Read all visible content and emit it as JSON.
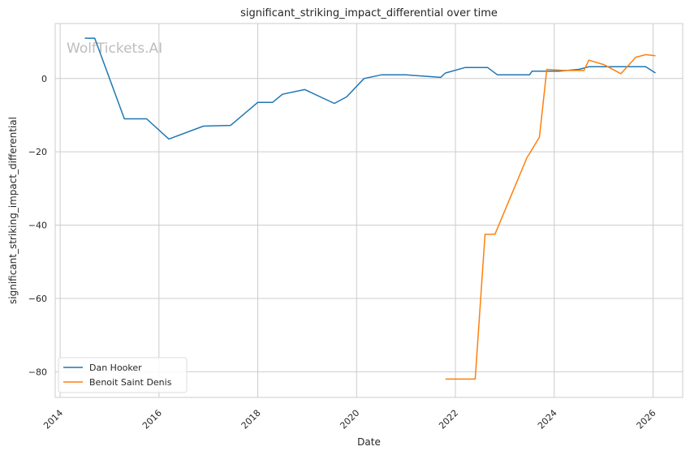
{
  "chart_data": {
    "type": "line",
    "title": "significant_striking_impact_differential over time",
    "xlabel": "Date",
    "ylabel": "significant_striking_impact_differential",
    "watermark": "WolfTickets.AI",
    "xlim": [
      2013.9,
      2026.6
    ],
    "ylim": [
      -87,
      15
    ],
    "x_ticks": [
      2014,
      2016,
      2018,
      2020,
      2022,
      2024,
      2026
    ],
    "x_tick_labels": [
      "2014",
      "2016",
      "2018",
      "2020",
      "2022",
      "2024",
      "2026"
    ],
    "y_ticks": [
      -80,
      -60,
      -40,
      -20,
      0
    ],
    "y_tick_labels": [
      "−80",
      "−60",
      "−40",
      "−20",
      "0"
    ],
    "grid": true,
    "legend_position": "lower-left",
    "series": [
      {
        "name": "Dan Hooker",
        "color": "#1f77b4",
        "x": [
          2014.5,
          2014.7,
          2015.3,
          2015.75,
          2016.2,
          2016.9,
          2017.45,
          2018.0,
          2018.3,
          2018.5,
          2018.95,
          2019.55,
          2019.8,
          2020.15,
          2020.5,
          2021.0,
          2021.7,
          2021.8,
          2022.2,
          2022.65,
          2022.85,
          2023.5,
          2023.55,
          2024.1,
          2024.5,
          2024.7,
          2025.0,
          2025.3,
          2025.6,
          2025.85,
          2026.05
        ],
        "y": [
          11,
          11,
          -11,
          -11,
          -16.5,
          -13,
          -12.8,
          -6.5,
          -6.5,
          -4.3,
          -3,
          -6.8,
          -5,
          0,
          1,
          1,
          0.3,
          1.5,
          3,
          3,
          1,
          1,
          2,
          2,
          2.5,
          3.2,
          3.2,
          3.2,
          3.2,
          3.2,
          1.5
        ]
      },
      {
        "name": "Benoit Saint Denis",
        "color": "#ff7f0e",
        "x": [
          2021.8,
          2022.4,
          2022.6,
          2022.8,
          2023.45,
          2023.5,
          2023.7,
          2023.85,
          2024.2,
          2024.6,
          2024.7,
          2025.0,
          2025.35,
          2025.65,
          2025.85,
          2026.05
        ],
        "y": [
          -82,
          -82,
          -42.5,
          -42.5,
          -21.5,
          -20.5,
          -16,
          2.5,
          2.2,
          2.2,
          5,
          3.8,
          1.3,
          5.8,
          6.5,
          6.2
        ]
      }
    ]
  }
}
